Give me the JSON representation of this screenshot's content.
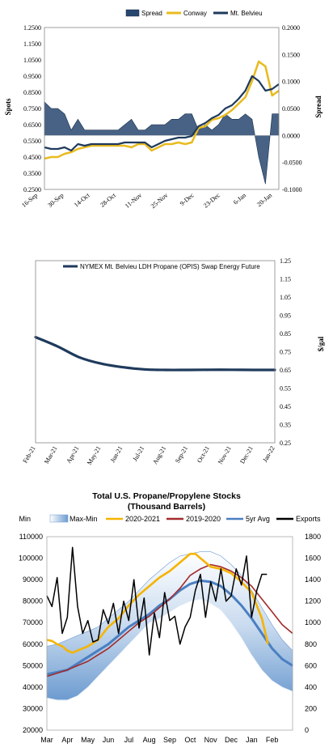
{
  "chart_data": [
    {
      "type": "line",
      "legend": [
        "Spread",
        "Conway",
        "Mt. Belvieu"
      ],
      "legend_placement": "top",
      "ylabel": "Spots",
      "y2label": "Spread",
      "ylim": [
        0.25,
        1.25
      ],
      "y2lim": [
        -0.1,
        0.2
      ],
      "y_ticks": [
        "1.2500",
        "1.1500",
        "1.0500",
        "0.9500",
        "0.8500",
        "0.7500",
        "0.6500",
        "0.5500",
        "0.4500",
        "0.3500",
        "0.2500"
      ],
      "y2_ticks": [
        "0.2000",
        "0.1500",
        "0.1000",
        "0.0500",
        "0.0000",
        "-0.0500",
        "-0.1000"
      ],
      "x_ticks": [
        "16-Sep",
        "30-Sep",
        "14-Oct",
        "28-Oct",
        "11-Nov",
        "25-Nov",
        "9-Dec",
        "23-Dec",
        "6-Jan",
        "20-Jan"
      ],
      "x_span": 140,
      "series": [
        {
          "name": "Mt. Belvieu",
          "color": "#1f3a5c",
          "x": [
            0,
            4,
            8,
            12,
            16,
            20,
            24,
            28,
            32,
            36,
            40,
            44,
            48,
            52,
            56,
            60,
            64,
            68,
            72,
            76,
            80,
            84,
            88,
            92,
            96,
            100,
            104,
            108,
            112,
            116,
            120,
            124,
            128,
            132,
            136,
            140
          ],
          "values": [
            0.51,
            0.5,
            0.5,
            0.51,
            0.49,
            0.53,
            0.52,
            0.53,
            0.53,
            0.53,
            0.53,
            0.53,
            0.54,
            0.54,
            0.54,
            0.54,
            0.51,
            0.53,
            0.55,
            0.56,
            0.57,
            0.57,
            0.58,
            0.64,
            0.66,
            0.69,
            0.71,
            0.75,
            0.77,
            0.81,
            0.86,
            0.95,
            0.92,
            0.86,
            0.87,
            0.9
          ]
        },
        {
          "name": "Conway",
          "color": "#e8bb20",
          "x": [
            0,
            4,
            8,
            12,
            16,
            20,
            24,
            28,
            32,
            36,
            40,
            44,
            48,
            52,
            56,
            60,
            64,
            68,
            72,
            76,
            80,
            84,
            88,
            92,
            96,
            100,
            104,
            108,
            112,
            116,
            120,
            124,
            128,
            132,
            136,
            140
          ],
          "values": [
            0.44,
            0.45,
            0.45,
            0.47,
            0.48,
            0.5,
            0.51,
            0.52,
            0.52,
            0.52,
            0.52,
            0.52,
            0.52,
            0.51,
            0.53,
            0.53,
            0.49,
            0.51,
            0.53,
            0.53,
            0.54,
            0.53,
            0.54,
            0.63,
            0.64,
            0.68,
            0.69,
            0.71,
            0.74,
            0.78,
            0.82,
            0.92,
            1.04,
            1.01,
            0.83,
            0.86
          ]
        },
        {
          "name": "Spread",
          "color": "#27476e",
          "x": [
            0,
            4,
            8,
            12,
            16,
            20,
            24,
            28,
            32,
            36,
            40,
            44,
            48,
            52,
            56,
            60,
            64,
            68,
            72,
            76,
            80,
            84,
            88,
            92,
            96,
            100,
            104,
            108,
            112,
            116,
            120,
            124,
            128,
            132,
            136,
            140
          ],
          "values": [
            0.062,
            0.05,
            0.05,
            0.04,
            0.01,
            0.03,
            0.01,
            0.01,
            0.01,
            0.01,
            0.01,
            0.01,
            0.02,
            0.03,
            0.01,
            0.01,
            0.02,
            0.02,
            0.02,
            0.03,
            0.03,
            0.04,
            0.04,
            0.01,
            0.02,
            0.01,
            0.02,
            0.04,
            0.03,
            0.03,
            0.04,
            0.03,
            -0.04,
            -0.09,
            0.04,
            0.04
          ]
        }
      ]
    },
    {
      "type": "line",
      "legend": [
        "NYMEX Mt. Belvieu LDH Propane (OPIS) Swap Energy Future"
      ],
      "legend_placement": "top",
      "y2label": "$/gal",
      "ylim": [
        0.25,
        1.25
      ],
      "y_ticks": [
        "1.25",
        "1.15",
        "1.05",
        "0.95",
        "0.85",
        "0.75",
        "0.65",
        "0.55",
        "0.45",
        "0.35",
        "0.25"
      ],
      "categories": [
        "Feb-21",
        "Mar-21",
        "Apr-21",
        "May-21",
        "Jun-21",
        "Jul-21",
        "Aug-21",
        "Sep-21",
        "Oct-21",
        "Nov-21",
        "Dec-21",
        "Jan-22"
      ],
      "series": [
        {
          "name": "NYMEX Mt. Belvieu LDH Propane (OPIS) Swap Energy Future",
          "color": "#1f3a5c",
          "values": [
            0.83,
            0.78,
            0.72,
            0.685,
            0.665,
            0.653,
            0.65,
            0.65,
            0.651,
            0.651,
            0.65,
            0.65
          ]
        }
      ]
    },
    {
      "type": "line",
      "title": "Total U.S. Propane/Propylene Stocks",
      "subtitle": "(Thousand Barrels)",
      "legend": [
        "Min",
        "Max-Min",
        "2020-2021",
        "2019-2020",
        "5yr Avg",
        "Exports"
      ],
      "legend_placement": "top",
      "ylim": [
        20000,
        110000
      ],
      "y2lim": [
        0,
        1800
      ],
      "y_ticks": [
        "110000",
        "100000",
        "90000",
        "80000",
        "70000",
        "60000",
        "50000",
        "40000",
        "30000",
        "20000"
      ],
      "y2_ticks": [
        "1800",
        "1600",
        "1400",
        "1200",
        "1000",
        "800",
        "600",
        "400",
        "200",
        "0"
      ],
      "categories": [
        "Mar",
        "Apr",
        "May",
        "Jun",
        "Jul",
        "Aug",
        "Sep",
        "Oct",
        "Nov",
        "Dec",
        "Jan",
        "Feb"
      ],
      "x_span": 12,
      "series": [
        {
          "name": "Min",
          "x": [
            0,
            0.5,
            1,
            1.5,
            2,
            2.5,
            3,
            3.5,
            4,
            4.5,
            5,
            5.5,
            6,
            6.5,
            7,
            7.5,
            8,
            8.5,
            9,
            9.5,
            10,
            10.5,
            11,
            11.5,
            12
          ],
          "values": [
            35000,
            34000,
            34000,
            36000,
            40000,
            45000,
            50000,
            55000,
            60000,
            65000,
            70000,
            72000,
            75000,
            78000,
            80000,
            81000,
            79000,
            76000,
            70000,
            63000,
            55000,
            48000,
            43000,
            40000,
            38000
          ]
        },
        {
          "name": "Max-Min",
          "x": [
            0,
            0.5,
            1,
            1.5,
            2,
            2.5,
            3,
            3.5,
            4,
            4.5,
            5,
            5.5,
            6,
            6.5,
            7,
            7.5,
            8,
            8.5,
            9,
            9.5,
            10,
            10.5,
            11,
            11.5,
            12
          ],
          "values": [
            59000,
            60000,
            62000,
            64000,
            66000,
            68000,
            72000,
            76000,
            80000,
            85000,
            90000,
            94000,
            98000,
            101000,
            102000,
            103000,
            103000,
            101000,
            97000,
            92000,
            85000,
            77000,
            69000,
            62000,
            57000
          ]
        },
        {
          "name": "2020-2021",
          "color": "#f5b400",
          "x": [
            0,
            0.25,
            0.5,
            0.75,
            1,
            1.25,
            1.5,
            2,
            2.5,
            3,
            3.5,
            4,
            4.5,
            5,
            5.5,
            6,
            6.5,
            7,
            7.25,
            7.5,
            7.75,
            8,
            8.5,
            9,
            9.5,
            10,
            10.5,
            10.8
          ],
          "values": [
            62000,
            61500,
            60000,
            59000,
            57000,
            56000,
            57000,
            59000,
            62000,
            68000,
            72000,
            78000,
            83000,
            87000,
            91000,
            94000,
            98000,
            102000,
            102000,
            100000,
            98000,
            96000,
            95000,
            93000,
            89000,
            84000,
            72000,
            60000
          ]
        },
        {
          "name": "2019-2020",
          "color": "#a32a2a",
          "x": [
            0,
            0.5,
            1,
            1.5,
            2,
            2.5,
            3,
            3.5,
            4,
            4.5,
            5,
            5.5,
            6,
            6.5,
            7,
            7.5,
            8,
            8.5,
            9,
            9.5,
            10,
            10.5,
            11,
            11.5,
            12
          ],
          "values": [
            45000,
            46500,
            48000,
            50000,
            52000,
            55000,
            58000,
            62000,
            66000,
            70000,
            73000,
            77000,
            81000,
            86000,
            92000,
            95000,
            97000,
            96000,
            94000,
            91000,
            87000,
            81000,
            75000,
            69000,
            65000
          ]
        },
        {
          "name": "5yr Avg",
          "color": "#4a7fc1",
          "x": [
            0,
            0.5,
            1,
            1.5,
            2,
            2.5,
            3,
            3.5,
            4,
            4.5,
            5,
            5.5,
            6,
            6.5,
            7,
            7.5,
            8,
            8.5,
            9,
            9.5,
            10,
            10.5,
            11,
            11.5,
            12
          ],
          "values": [
            46000,
            47000,
            48000,
            51000,
            54000,
            57000,
            60000,
            64000,
            68000,
            71000,
            74000,
            78000,
            81000,
            85000,
            88000,
            89500,
            89000,
            87000,
            83000,
            78000,
            72000,
            65000,
            58000,
            53000,
            50000
          ]
        },
        {
          "name": "Exports",
          "color": "#000000",
          "axis": "right",
          "x": [
            0,
            0.25,
            0.5,
            0.75,
            1,
            1.25,
            1.5,
            1.75,
            2,
            2.25,
            2.5,
            2.75,
            3,
            3.25,
            3.5,
            3.75,
            4,
            4.25,
            4.5,
            4.75,
            5,
            5.25,
            5.5,
            5.75,
            6,
            6.25,
            6.5,
            6.75,
            7,
            7.25,
            7.5,
            7.75,
            8,
            8.25,
            8.5,
            8.75,
            9,
            9.25,
            9.5,
            9.75,
            10,
            10.25,
            10.5,
            10.75
          ],
          "values": [
            1250,
            1150,
            1420,
            900,
            1050,
            1700,
            1150,
            900,
            1020,
            820,
            840,
            1120,
            990,
            1180,
            900,
            1200,
            1020,
            1400,
            950,
            1230,
            700,
            1090,
            860,
            1280,
            1020,
            1060,
            800,
            960,
            1050,
            1300,
            1450,
            1050,
            1380,
            1200,
            1500,
            1200,
            1250,
            1500,
            1350,
            1620,
            1050,
            1300,
            1450,
            1450
          ]
        }
      ]
    }
  ]
}
